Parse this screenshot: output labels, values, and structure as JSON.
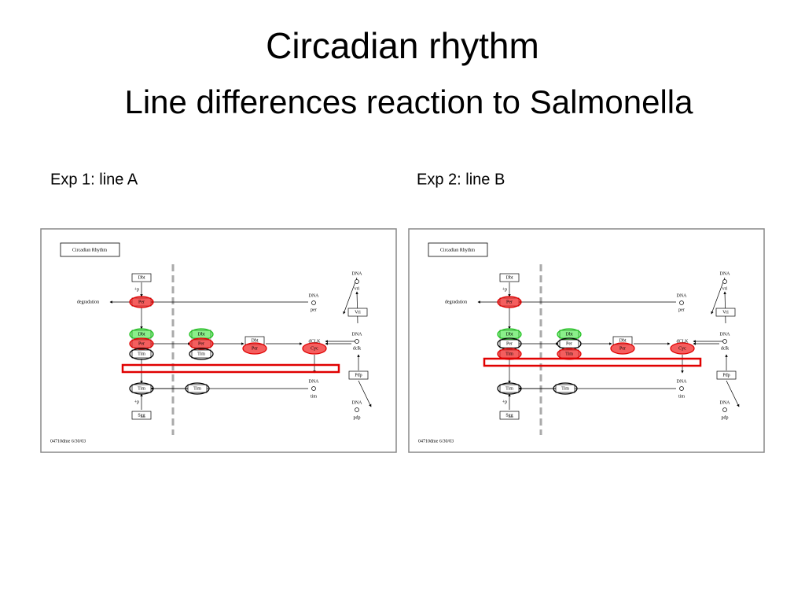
{
  "title": "Circadian rhythm",
  "subtitle": "Line differences reaction to Salmonella",
  "panels": [
    {
      "caption": "Exp 1: line A"
    },
    {
      "caption": "Exp 2: line B"
    }
  ],
  "diagram": {
    "title": "Circadian Rhythm",
    "footer": "04710dme  6/30/03",
    "nodes": [
      "Dbt",
      "+p",
      "degradation",
      "Per",
      "Dbt",
      "Per",
      "Tim",
      "Dbt",
      "Per",
      "Tim",
      "Dbt",
      "Per",
      "dCLK",
      "Cyc",
      "DNA",
      "vri",
      "Vri",
      "DNA",
      "per",
      "DNA",
      "dclk",
      "Pdp",
      "DNA",
      "tim",
      "DNA",
      "pdp",
      "Tim",
      "+p",
      "Sgg",
      "Tim"
    ]
  }
}
